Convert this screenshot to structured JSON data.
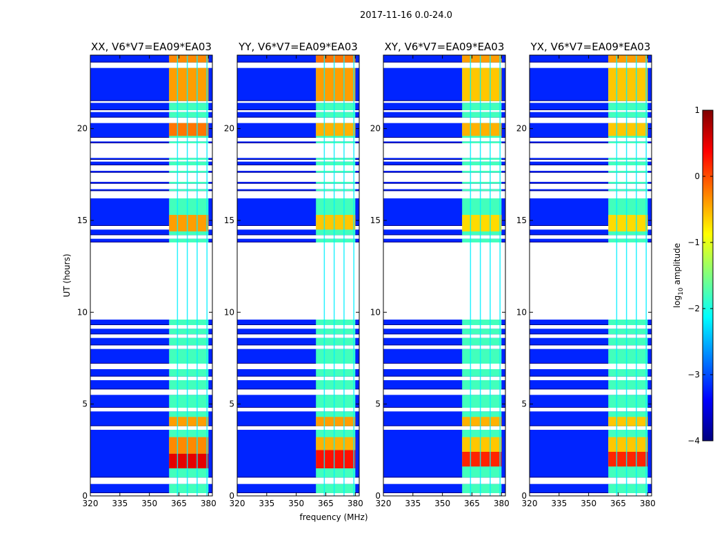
{
  "figure": {
    "suptitle": "2017-11-16 0.0-24.0",
    "xlabel": "frequency (MHz)",
    "ylabel": "UT (hours)"
  },
  "colors": {
    "colormap": [
      "#00007f",
      "#0000ff",
      "#007fff",
      "#00ffff",
      "#7fff7f",
      "#ffff00",
      "#ff7f00",
      "#ff0000",
      "#7f0000"
    ],
    "background": "#ffffff",
    "gap": "#ffffff",
    "axis": "#000000"
  },
  "colorbar": {
    "label_main": "log",
    "label_sub": "10",
    "label_rest": " amplitude",
    "range": [
      -4,
      1
    ],
    "ticks": [
      "1",
      "0",
      "−1",
      "−2",
      "−3",
      "−4"
    ],
    "tick_values": [
      1,
      0,
      -1,
      -2,
      -3,
      -4
    ]
  },
  "chart_data": {
    "type": "heatmap",
    "x_range": [
      320,
      382
    ],
    "y_range": [
      0,
      24
    ],
    "x_ticks": [
      320,
      335,
      350,
      365,
      380
    ],
    "x_tick_labels": [
      "320",
      "335",
      "350",
      "365",
      "380"
    ],
    "y_ticks": [
      0,
      5,
      10,
      15,
      20
    ],
    "y_tick_labels": [
      "0",
      "5",
      "10",
      "15",
      "20"
    ],
    "band_mhz": [
      360,
      380
    ],
    "subband_edges_mhz": [
      364,
      369,
      374,
      379
    ],
    "background_log_amp": -3.2,
    "observed_segments_ut": [
      [
        0.15,
        0.65
      ],
      [
        1.0,
        3.6
      ],
      [
        3.8,
        4.6
      ],
      [
        4.8,
        5.5
      ],
      [
        5.8,
        6.3
      ],
      [
        6.5,
        6.9
      ],
      [
        7.2,
        8.0
      ],
      [
        8.2,
        8.6
      ],
      [
        8.8,
        9.1
      ],
      [
        9.3,
        9.6
      ],
      [
        13.8,
        14.0
      ],
      [
        14.2,
        14.5
      ],
      [
        14.7,
        16.2
      ],
      [
        16.6,
        16.7
      ],
      [
        17.0,
        17.1
      ],
      [
        17.6,
        17.7
      ],
      [
        18.0,
        18.2
      ],
      [
        18.3,
        18.4
      ],
      [
        19.2,
        19.3
      ],
      [
        19.5,
        20.3
      ],
      [
        20.6,
        20.9
      ],
      [
        21.0,
        21.4
      ],
      [
        21.5,
        23.3
      ],
      [
        23.6,
        24.0
      ]
    ],
    "panels": [
      {
        "title": "XX, V6*V7=EA09*EA03",
        "band_segments_ut": [
          {
            "y0": 1.5,
            "y1": 2.3,
            "level": 0.5
          },
          {
            "y0": 2.3,
            "y1": 3.2,
            "level": -0.3
          },
          {
            "y0": 3.8,
            "y1": 4.3,
            "level": -0.4
          },
          {
            "y0": 14.4,
            "y1": 15.3,
            "level": -0.4
          },
          {
            "y0": 19.6,
            "y1": 20.3,
            "level": -0.2
          },
          {
            "y0": 21.5,
            "y1": 23.3,
            "level": -0.4
          },
          {
            "y0": 23.6,
            "y1": 24.0,
            "level": -0.3
          }
        ]
      },
      {
        "title": "YY, V6*V7=EA09*EA03",
        "band_segments_ut": [
          {
            "y0": 1.5,
            "y1": 2.5,
            "level": 0.3
          },
          {
            "y0": 2.5,
            "y1": 3.2,
            "level": -0.5
          },
          {
            "y0": 3.8,
            "y1": 4.3,
            "level": -0.4
          },
          {
            "y0": 14.5,
            "y1": 15.3,
            "level": -0.6
          },
          {
            "y0": 19.6,
            "y1": 20.3,
            "level": -0.5
          },
          {
            "y0": 21.5,
            "y1": 23.3,
            "level": -0.4
          },
          {
            "y0": 23.6,
            "y1": 24.0,
            "level": -0.2
          }
        ]
      },
      {
        "title": "XY, V6*V7=EA09*EA03",
        "band_segments_ut": [
          {
            "y0": 1.6,
            "y1": 2.4,
            "level": 0.2
          },
          {
            "y0": 2.4,
            "y1": 3.2,
            "level": -0.6
          },
          {
            "y0": 3.8,
            "y1": 4.3,
            "level": -0.5
          },
          {
            "y0": 14.4,
            "y1": 15.3,
            "level": -0.7
          },
          {
            "y0": 19.6,
            "y1": 20.3,
            "level": -0.5
          },
          {
            "y0": 21.5,
            "y1": 23.3,
            "level": -0.6
          },
          {
            "y0": 23.6,
            "y1": 24.0,
            "level": -0.4
          }
        ]
      },
      {
        "title": "YX, V6*V7=EA09*EA03",
        "band_segments_ut": [
          {
            "y0": 1.6,
            "y1": 2.4,
            "level": 0.2
          },
          {
            "y0": 2.4,
            "y1": 3.2,
            "level": -0.6
          },
          {
            "y0": 3.8,
            "y1": 4.3,
            "level": -0.6
          },
          {
            "y0": 14.4,
            "y1": 15.3,
            "level": -0.7
          },
          {
            "y0": 19.6,
            "y1": 20.3,
            "level": -0.6
          },
          {
            "y0": 21.5,
            "y1": 23.3,
            "level": -0.6
          },
          {
            "y0": 23.6,
            "y1": 24.0,
            "level": -0.4
          }
        ]
      }
    ]
  }
}
